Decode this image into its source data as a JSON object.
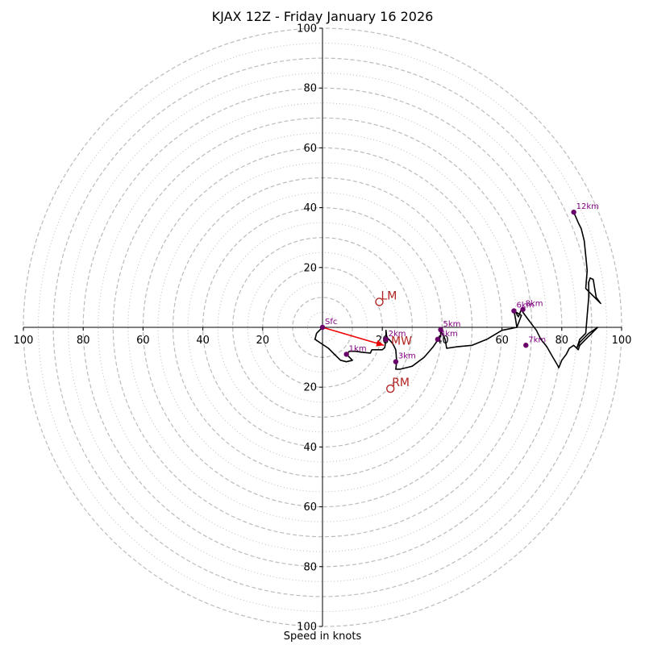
{
  "chart_data": {
    "type": "hodograph",
    "title": "KJAX 12Z - Friday January 16 2026",
    "xlabel": "Speed in knots",
    "axis_range": [
      -100,
      100
    ],
    "ring_labels": [
      "20",
      "40",
      "60",
      "80",
      "100"
    ],
    "tick_values": [
      20,
      40,
      60,
      80,
      100
    ],
    "major_rings": [
      10,
      20,
      30,
      40,
      50,
      60,
      70,
      80,
      90,
      100
    ],
    "minor_rings": [
      5,
      15,
      25,
      35,
      45,
      55,
      65,
      75,
      85,
      95
    ],
    "trace": [
      [
        0,
        0
      ],
      [
        -2,
        -2
      ],
      [
        -2.5,
        -4
      ],
      [
        -1,
        -5
      ],
      [
        2,
        -7
      ],
      [
        4,
        -9
      ],
      [
        6,
        -11
      ],
      [
        8,
        -11.5
      ],
      [
        10,
        -11
      ],
      [
        8,
        -9
      ],
      [
        9,
        -8
      ],
      [
        11,
        -8
      ],
      [
        13,
        -8.3
      ],
      [
        16,
        -8.6
      ],
      [
        16.5,
        -7.5
      ],
      [
        20,
        -7.5
      ],
      [
        20.8,
        -6.8
      ],
      [
        21.2,
        -4
      ],
      [
        21.2,
        -1
      ],
      [
        21.5,
        -3.5
      ],
      [
        22.2,
        -4
      ],
      [
        23.5,
        -5.5
      ],
      [
        24.5,
        -7.5
      ],
      [
        24.8,
        -11.5
      ],
      [
        24.5,
        -14
      ],
      [
        26,
        -14
      ],
      [
        30,
        -13
      ],
      [
        34,
        -10
      ],
      [
        37,
        -6.5
      ],
      [
        38.7,
        -4
      ],
      [
        39.5,
        -3
      ],
      [
        39.5,
        -1
      ],
      [
        40,
        -2
      ],
      [
        41,
        -4
      ],
      [
        41.5,
        -7
      ],
      [
        45,
        -6.5
      ],
      [
        50,
        -6
      ],
      [
        55,
        -4
      ],
      [
        60,
        -1
      ],
      [
        65,
        0
      ],
      [
        64.5,
        3
      ],
      [
        64,
        5.5
      ],
      [
        66.5,
        4
      ],
      [
        65,
        0
      ],
      [
        64,
        6
      ],
      [
        65.5,
        3.5
      ],
      [
        66.5,
        6
      ],
      [
        67,
        5
      ],
      [
        68.5,
        3
      ],
      [
        70,
        1
      ],
      [
        71.5,
        -1
      ],
      [
        73,
        -4
      ],
      [
        75,
        -6.5
      ],
      [
        77,
        -10
      ],
      [
        78.5,
        -12.5
      ],
      [
        79,
        -13.5
      ],
      [
        80,
        -11
      ],
      [
        81.5,
        -9
      ],
      [
        82.5,
        -7
      ],
      [
        84,
        -6
      ],
      [
        85.5,
        -7.5
      ],
      [
        86,
        -6
      ],
      [
        88,
        -4
      ],
      [
        90,
        -2
      ],
      [
        92,
        0
      ],
      [
        89,
        -2
      ],
      [
        86,
        -5
      ],
      [
        85,
        -7
      ],
      [
        86,
        -4
      ],
      [
        88,
        -2
      ],
      [
        88.5,
        4
      ],
      [
        89,
        10
      ],
      [
        89,
        15
      ],
      [
        89.5,
        16.5
      ],
      [
        90.5,
        16
      ],
      [
        91,
        13
      ],
      [
        91.5,
        10
      ],
      [
        93,
        8
      ],
      [
        88,
        13
      ],
      [
        88.5,
        19
      ],
      [
        88,
        24
      ],
      [
        87.5,
        29
      ],
      [
        86.5,
        33
      ],
      [
        85.5,
        35
      ],
      [
        84,
        38.5
      ]
    ],
    "height_markers": [
      {
        "label": "Sfc",
        "u": 0,
        "v": 0
      },
      {
        "label": "1km",
        "u": 8,
        "v": -9
      },
      {
        "label": "2km",
        "u": 21.2,
        "v": -4
      },
      {
        "label": "3km",
        "u": 24.5,
        "v": -11.5
      },
      {
        "label": "4km",
        "u": 38.5,
        "v": -4
      },
      {
        "label": "5km",
        "u": 39.5,
        "v": -0.8
      },
      {
        "label": "6km",
        "u": 64,
        "v": 5.5
      },
      {
        "label": "7km",
        "u": 68,
        "v": -6
      },
      {
        "label": "8km",
        "u": 67,
        "v": 6
      },
      {
        "label": "12km",
        "u": 84,
        "v": 38.5
      }
    ],
    "storm_motion": [
      {
        "label": "LM",
        "u": 19,
        "v": 8.5
      },
      {
        "label": "RM",
        "u": 22.7,
        "v": -20.5
      }
    ],
    "mean_wind": {
      "label": "MW",
      "u": 20.5,
      "v": -6
    },
    "colors": {
      "trace": "#000000",
      "markers": "#6a006a",
      "marker_text": "#800080",
      "storm": "#b22222",
      "arrow": "#ee0000",
      "grid": "#bbbbbb"
    }
  }
}
